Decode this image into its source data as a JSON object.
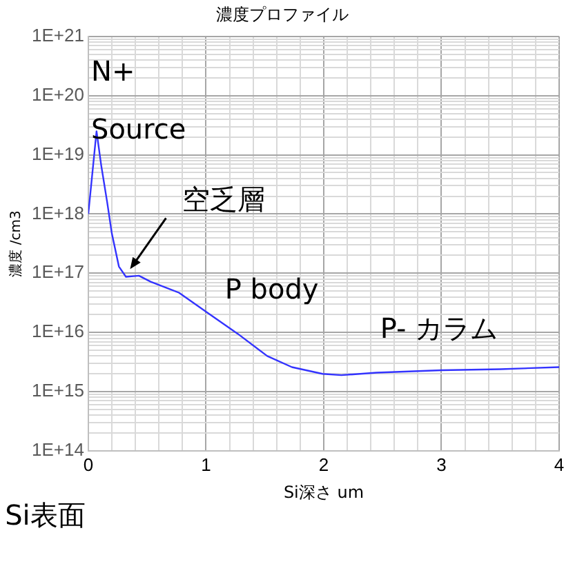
{
  "chart_data": {
    "type": "line",
    "title": "濃度プロファイル",
    "xlabel": "Si深さ um",
    "ylabel": "濃度 /cm3",
    "log": "y",
    "grid": true,
    "legend": false,
    "marker": "none",
    "line_style": "solid",
    "xlim": [
      0,
      4
    ],
    "xticks": [
      0,
      {
        "value": 0.2,
        "label": null
      },
      {
        "value": 0.4,
        "label": null
      },
      {
        "value": 0.6,
        "label": null
      },
      {
        "value": 0.8,
        "label": null
      },
      1,
      {
        "value": 1.2,
        "label": null
      },
      {
        "value": 1.4,
        "label": null
      },
      {
        "value": 1.6,
        "label": null
      },
      {
        "value": 1.8,
        "label": null
      },
      2,
      {
        "value": 2.2,
        "label": null
      },
      {
        "value": 2.4,
        "label": null
      },
      {
        "value": 2.6,
        "label": null
      },
      {
        "value": 2.8,
        "label": null
      },
      3,
      {
        "value": 3.2,
        "label": null
      },
      {
        "value": 3.4,
        "label": null
      },
      {
        "value": 3.6,
        "label": null
      },
      {
        "value": 3.8,
        "label": null
      },
      4
    ],
    "ylim": [
      100000000000000.0,
      1e+21
    ],
    "yticks": [
      {
        "value": 100000000000000.0,
        "label": "1E+14"
      },
      {
        "value": 200000000000000.0,
        "label": null
      },
      {
        "value": 300000000000000.0,
        "label": null
      },
      {
        "value": 400000000000000.0,
        "label": null
      },
      {
        "value": 500000000000000.0,
        "label": null
      },
      {
        "value": 600000000000000.0,
        "label": null
      },
      {
        "value": 700000000000000.0,
        "label": null
      },
      {
        "value": 800000000000000.0,
        "label": null
      },
      {
        "value": 900000000000000.0,
        "label": null
      },
      {
        "value": 1000000000000000.0,
        "label": "1E+15"
      },
      {
        "value": 2000000000000000.0,
        "label": null
      },
      {
        "value": 3000000000000000.0,
        "label": null
      },
      {
        "value": 4000000000000000.0,
        "label": null
      },
      {
        "value": 5000000000000000.0,
        "label": null
      },
      {
        "value": 6000000000000000.0,
        "label": null
      },
      {
        "value": 7000000000000000.0,
        "label": null
      },
      {
        "value": 8000000000000000.0,
        "label": null
      },
      {
        "value": 9000000000000000.0,
        "label": null
      },
      {
        "value": 1e+16,
        "label": "1E+16"
      },
      {
        "value": 2e+16,
        "label": null
      },
      {
        "value": 3e+16,
        "label": null
      },
      {
        "value": 4e+16,
        "label": null
      },
      {
        "value": 5e+16,
        "label": null
      },
      {
        "value": 6e+16,
        "label": null
      },
      {
        "value": 7e+16,
        "label": null
      },
      {
        "value": 8e+16,
        "label": null
      },
      {
        "value": 9e+16,
        "label": null
      },
      {
        "value": 1e+17,
        "label": "1E+17"
      },
      {
        "value": 2e+17,
        "label": null
      },
      {
        "value": 3e+17,
        "label": null
      },
      {
        "value": 4e+17,
        "label": null
      },
      {
        "value": 5e+17,
        "label": null
      },
      {
        "value": 6e+17,
        "label": null
      },
      {
        "value": 7e+17,
        "label": null
      },
      {
        "value": 8e+17,
        "label": null
      },
      {
        "value": 9e+17,
        "label": null
      },
      {
        "value": 1e+18,
        "label": "1E+18"
      },
      {
        "value": 2e+18,
        "label": null
      },
      {
        "value": 3e+18,
        "label": null
      },
      {
        "value": 4e+18,
        "label": null
      },
      {
        "value": 5e+18,
        "label": null
      },
      {
        "value": 6e+18,
        "label": null
      },
      {
        "value": 7e+18,
        "label": null
      },
      {
        "value": 8e+18,
        "label": null
      },
      {
        "value": 9e+18,
        "label": null
      },
      {
        "value": 1e+19,
        "label": "1E+19"
      },
      {
        "value": 2e+19,
        "label": null
      },
      {
        "value": 3e+19,
        "label": null
      },
      {
        "value": 4e+19,
        "label": null
      },
      {
        "value": 5e+19,
        "label": null
      },
      {
        "value": 6e+19,
        "label": null
      },
      {
        "value": 7e+19,
        "label": null
      },
      {
        "value": 8e+19,
        "label": null
      },
      {
        "value": 9e+19,
        "label": null
      },
      {
        "value": 1e+20,
        "label": "1E+20"
      },
      {
        "value": 2e+20,
        "label": null
      },
      {
        "value": 3e+20,
        "label": null
      },
      {
        "value": 4e+20,
        "label": null
      },
      {
        "value": 5e+20,
        "label": null
      },
      {
        "value": 6e+20,
        "label": null
      },
      {
        "value": 7e+20,
        "label": null
      },
      {
        "value": 8e+20,
        "label": null
      },
      {
        "value": 9e+20,
        "label": null
      },
      {
        "value": 1e+21,
        "label": "1E+21"
      }
    ],
    "series": [
      {
        "color": "#3333ff",
        "x": [
          0,
          0.07,
          0.11,
          0.16,
          0.2,
          0.26,
          0.32,
          0.43,
          0.53,
          0.77,
          1.02,
          1.27,
          1.52,
          1.73,
          1.99,
          2.15,
          2.45,
          3.0,
          3.5,
          4.0
        ],
        "values": [
          1e+18,
          2.5e+19,
          6.6e+18,
          1.6e+18,
          4.7e+17,
          1.3e+17,
          8.7e+16,
          9.1e+16,
          7.2e+16,
          4.7e+16,
          2.1e+16,
          9500000000000000.0,
          4000000000000000.0,
          2600000000000000.0,
          2000000000000000.0,
          1900000000000000.0,
          2100000000000000.0,
          2300000000000000.0,
          2400000000000000.0,
          2600000000000000.0
        ]
      }
    ],
    "annotations": [
      "N+\nSource",
      "P body",
      "P- カラム",
      {
        "text": "空乏層",
        "x": 0.32,
        "y": 1e+17
      },
      "Si表面"
    ]
  }
}
